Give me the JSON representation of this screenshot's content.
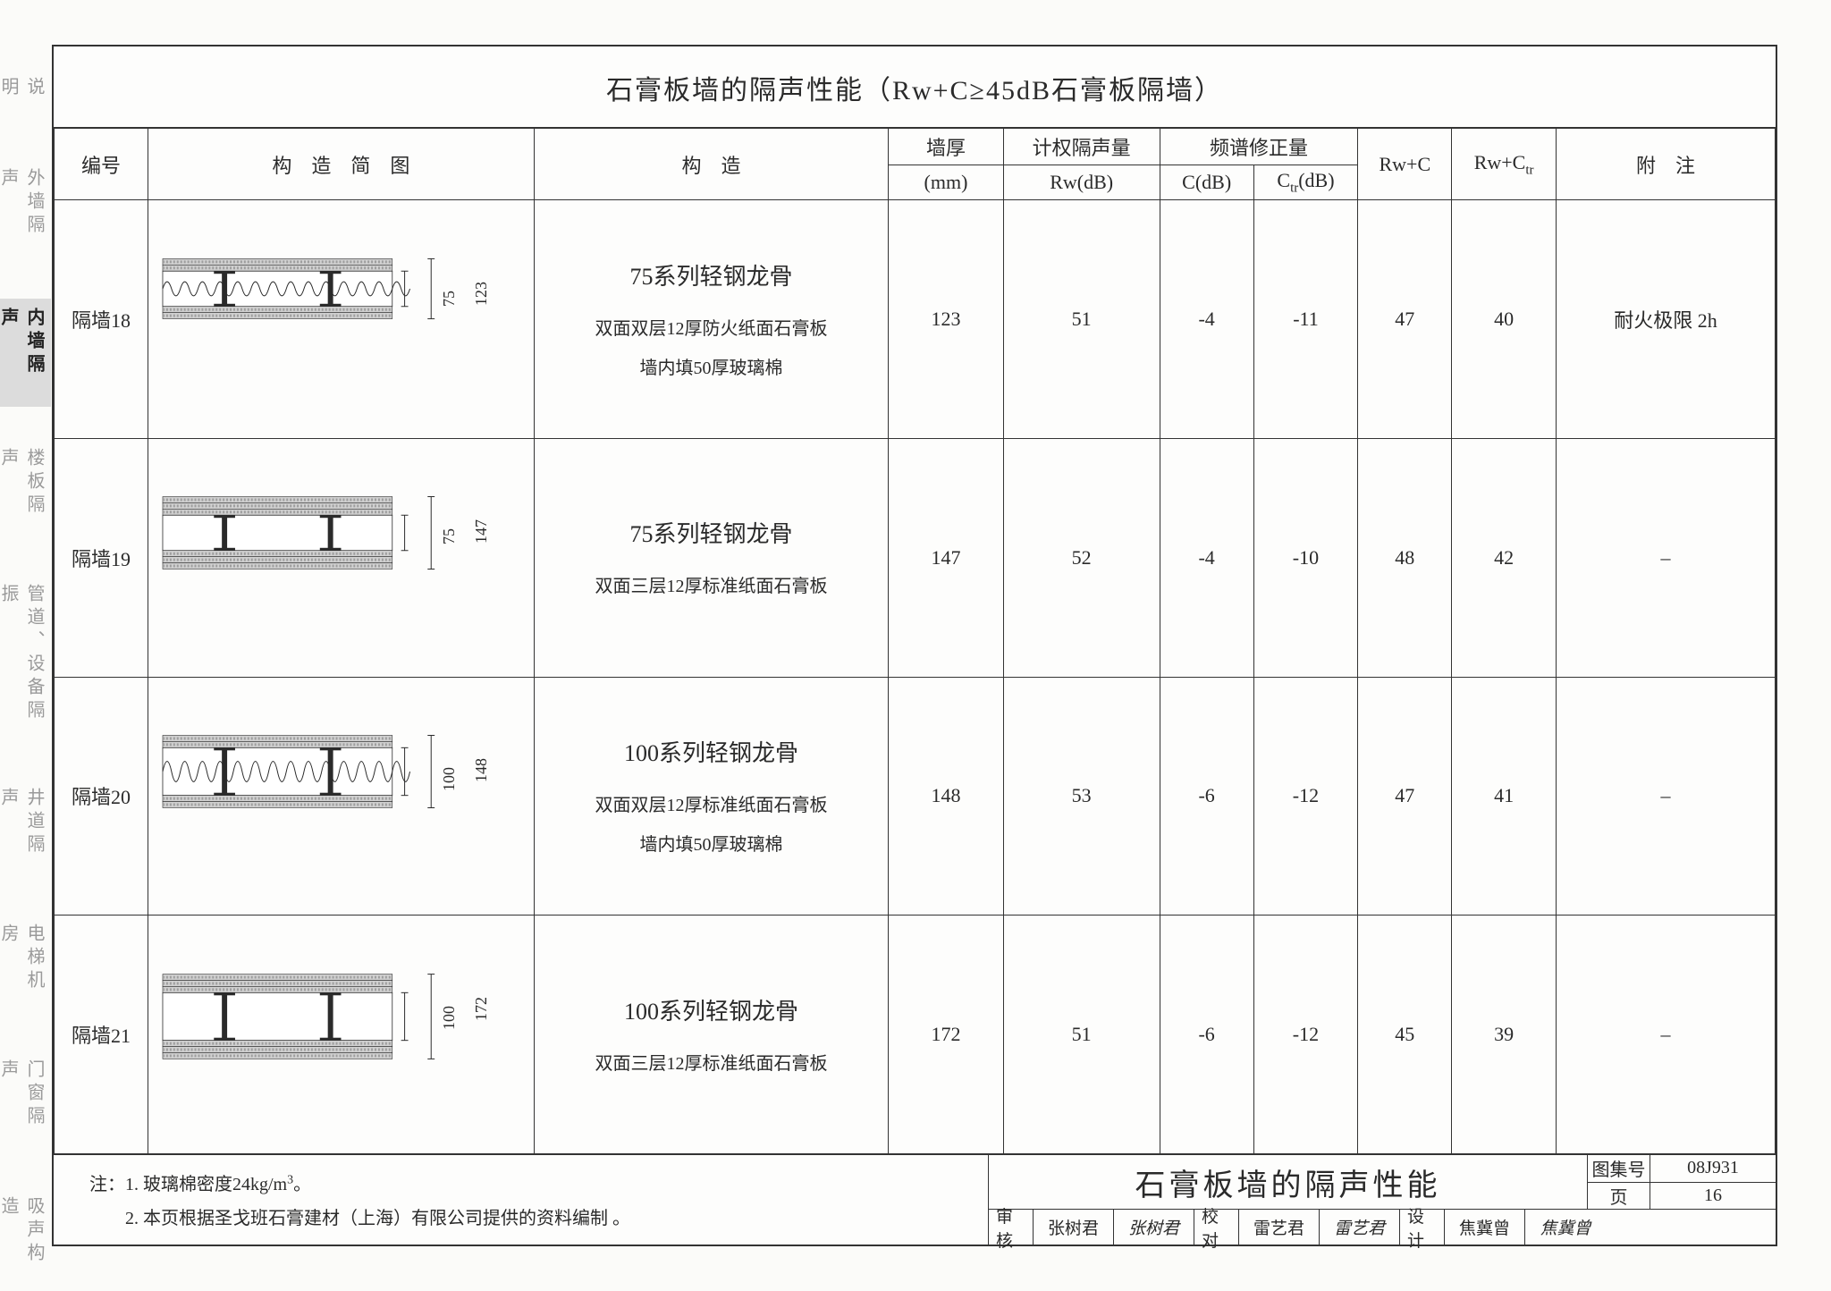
{
  "sidebar": {
    "tabs": [
      "说明",
      "外墙隔声",
      "内墙隔声",
      "楼板隔声",
      "管道、设备隔振",
      "井道隔声",
      "电梯机房",
      "门窗隔声",
      "吸声构造"
    ],
    "active_index": 2
  },
  "title": "石膏板墙的隔声性能（Rw+C≥45dB石膏板隔墙）",
  "headers": {
    "id": "编号",
    "diagram": "构　造　简　图",
    "construction": "构　造",
    "thickness": "墙厚",
    "thickness_unit": "(mm)",
    "rw": "计权隔声量",
    "rw_unit": "Rw(dB)",
    "spectrum": "频谱修正量",
    "c": "C(dB)",
    "ctr": "Ctr(dB)",
    "rwc": "Rw+C",
    "rwctr": "Rw+Ctr",
    "note": "附　注"
  },
  "rows": [
    {
      "id": "隔墙18",
      "stud": "75",
      "total": "123",
      "layers": 2,
      "fill": true,
      "cons_title": "75系列轻钢龙骨",
      "cons_lines": [
        "双面双层12厚防火纸面石膏板",
        "墙内填50厚玻璃棉"
      ],
      "thk": "123",
      "rw": "51",
      "c": "-4",
      "ctr": "-11",
      "rwc": "47",
      "rwctr": "40",
      "note": "耐火极限 2h"
    },
    {
      "id": "隔墙19",
      "stud": "75",
      "total": "147",
      "layers": 3,
      "fill": false,
      "cons_title": "75系列轻钢龙骨",
      "cons_lines": [
        "双面三层12厚标准纸面石膏板"
      ],
      "thk": "147",
      "rw": "52",
      "c": "-4",
      "ctr": "-10",
      "rwc": "48",
      "rwctr": "42",
      "note": "–"
    },
    {
      "id": "隔墙20",
      "stud": "100",
      "total": "148",
      "layers": 2,
      "fill": true,
      "cons_title": "100系列轻钢龙骨",
      "cons_lines": [
        "双面双层12厚标准纸面石膏板",
        "墙内填50厚玻璃棉"
      ],
      "thk": "148",
      "rw": "53",
      "c": "-6",
      "ctr": "-12",
      "rwc": "47",
      "rwctr": "41",
      "note": "–"
    },
    {
      "id": "隔墙21",
      "stud": "100",
      "total": "172",
      "layers": 3,
      "fill": false,
      "cons_title": "100系列轻钢龙骨",
      "cons_lines": [
        "双面三层12厚标准纸面石膏板"
      ],
      "thk": "172",
      "rw": "51",
      "c": "-6",
      "ctr": "-12",
      "rwc": "45",
      "rwctr": "39",
      "note": "–"
    }
  ],
  "footnotes": [
    "注：1. 玻璃棉密度24kg/m³。",
    "　　2. 本页根据圣戈班石膏建材（上海）有限公司提供的资料编制 。"
  ],
  "titleblock": {
    "title": "石膏板墙的隔声性能",
    "code_label": "图集号",
    "code": "08J931",
    "page_label": "页",
    "page": "16",
    "approvals": [
      {
        "lab": "审核",
        "name": "张树君",
        "sig": "张树君"
      },
      {
        "lab": "校对",
        "name": "雷艺君",
        "sig": "雷艺君"
      },
      {
        "lab": "设计",
        "name": "焦冀曾",
        "sig": "焦冀曾"
      }
    ]
  },
  "diagram_style": {
    "board_fill": "#d0d0d0",
    "hatch_fill": "#9e9e9e",
    "stroke": "#2a2a2a",
    "cavity_fill": "#ffffff"
  }
}
